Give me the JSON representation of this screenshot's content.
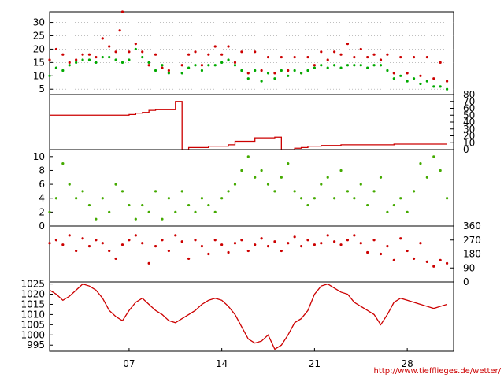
{
  "chart_data": [
    {
      "type": "line",
      "panel": "temperature",
      "y_axis_side": "left",
      "ylim": [
        3,
        34
      ],
      "yticks": [
        5,
        10,
        15,
        20,
        25,
        30
      ],
      "grid": "horizontal dotted",
      "series": [
        {
          "color": "#cc0000",
          "style": "points",
          "x": [
            1,
            1.5,
            2,
            2.5,
            3,
            3.5,
            4,
            4.5,
            5,
            5.5,
            6,
            6.3,
            6.5,
            7,
            7.5,
            8,
            8.5,
            9,
            9.5,
            10,
            11,
            11.5,
            12,
            12.5,
            13,
            13.5,
            14,
            14.5,
            15,
            15.5,
            16,
            16.5,
            17,
            17.5,
            18,
            18.5,
            19,
            19.5,
            20,
            20.5,
            21,
            21.5,
            22,
            22.5,
            23,
            23.5,
            24,
            24.5,
            25,
            25.5,
            26,
            26.5,
            27,
            27.5,
            28,
            28.5,
            29,
            29.5,
            30,
            30.5,
            31
          ],
          "y": [
            16,
            20,
            18,
            15,
            16,
            18,
            18,
            17,
            24,
            21,
            19,
            27,
            34,
            19,
            22,
            19,
            14,
            18,
            13,
            12,
            14,
            18,
            19,
            14,
            18,
            21,
            18,
            21,
            15,
            19,
            11,
            19,
            12,
            17,
            11,
            17,
            12,
            17,
            11,
            17,
            14,
            19,
            16,
            19,
            18,
            22,
            17,
            20,
            17,
            18,
            16,
            18,
            11,
            17,
            11,
            17,
            10,
            17,
            9,
            15,
            8
          ]
        },
        {
          "color": "#00aa00",
          "style": "points",
          "x": [
            1,
            1.5,
            2,
            2.5,
            3,
            3.5,
            4,
            4.5,
            5,
            5.5,
            6,
            6.5,
            7,
            7.5,
            8,
            8.5,
            9,
            9.5,
            10,
            11,
            11.5,
            12,
            12.5,
            13,
            13.5,
            14,
            14.5,
            15,
            15.5,
            16,
            16.5,
            17,
            17.5,
            18,
            18.5,
            19,
            19.5,
            20,
            20.5,
            21,
            21.5,
            22,
            22.5,
            23,
            23.5,
            24,
            24.5,
            25,
            25.5,
            26,
            26.5,
            27,
            27.5,
            28,
            28.5,
            29,
            29.5,
            30,
            30.5,
            31
          ],
          "y": [
            10,
            13,
            12,
            14,
            15,
            16,
            16,
            15,
            17,
            17,
            16,
            15,
            16,
            20,
            17,
            15,
            12,
            14,
            11,
            11,
            13,
            14,
            12,
            14,
            14,
            15,
            16,
            14,
            12,
            9,
            12,
            8,
            11,
            9,
            12,
            10,
            12,
            11,
            12,
            13,
            14,
            13,
            14,
            13,
            14,
            14,
            14,
            13,
            14,
            14,
            12,
            9,
            10,
            8,
            9,
            7,
            8,
            6,
            6,
            5
          ]
        }
      ]
    },
    {
      "type": "line",
      "panel": "precipitation",
      "y_axis_side": "right",
      "ylim": [
        0,
        80
      ],
      "yticks": [
        0,
        10,
        20,
        30,
        40,
        50,
        60,
        70,
        80
      ],
      "series": [
        {
          "color": "#cc0000",
          "style": "step",
          "x": [
            1,
            4.5,
            6,
            6.5,
            7,
            7.5,
            8,
            8.5,
            9,
            10,
            10.5,
            11,
            11.5,
            12,
            13,
            14,
            14.5,
            15,
            16,
            16.5,
            17,
            17.5,
            18,
            18.5,
            19,
            19.5,
            20,
            20.5,
            21,
            21.5,
            22,
            23,
            24,
            25,
            26,
            27,
            28,
            29,
            30,
            31
          ],
          "y": [
            50,
            50,
            50,
            50,
            51,
            53,
            54,
            57,
            58,
            58,
            70,
            0,
            3,
            3,
            5,
            5,
            7,
            12,
            12,
            17,
            17,
            17,
            18,
            0,
            0,
            2,
            3,
            5,
            5,
            6,
            6,
            7,
            7,
            7,
            7,
            8,
            8,
            8,
            8,
            8
          ]
        }
      ]
    },
    {
      "type": "scatter",
      "panel": "wind speed",
      "y_axis_side": "left",
      "ylim": [
        0,
        11
      ],
      "yticks": [
        0,
        2,
        4,
        6,
        8,
        10
      ],
      "series": [
        {
          "color": "#44aa00",
          "style": "points",
          "x": [
            1,
            1.5,
            2,
            2.5,
            3,
            3.5,
            4,
            4.5,
            5,
            5.5,
            6,
            6.5,
            7,
            7.5,
            8,
            8.5,
            9,
            9.5,
            10,
            10.5,
            11,
            11.5,
            12,
            12.5,
            13,
            13.5,
            14,
            14.5,
            15,
            15.5,
            16,
            16.5,
            17,
            17.5,
            18,
            18.5,
            19,
            19.5,
            20,
            20.5,
            21,
            21.5,
            22,
            22.5,
            23,
            23.5,
            24,
            24.5,
            25,
            25.5,
            26,
            26.5,
            27,
            27.5,
            28,
            28.5,
            29,
            29.5,
            30,
            30.5,
            31
          ],
          "y": [
            2,
            4,
            9,
            6,
            4,
            5,
            3,
            1,
            4,
            2,
            6,
            5,
            3,
            1,
            3,
            2,
            5,
            1,
            4,
            2,
            5,
            3,
            2,
            4,
            3,
            2,
            4,
            5,
            6,
            8,
            10,
            7,
            8,
            6,
            5,
            7,
            9,
            5,
            4,
            3,
            4,
            6,
            7,
            4,
            8,
            5,
            4,
            6,
            3,
            5,
            7,
            2,
            3,
            4,
            2,
            5,
            9,
            7,
            10,
            8,
            4
          ]
        }
      ]
    },
    {
      "type": "scatter",
      "panel": "wind direction",
      "y_axis_side": "right",
      "ylim": [
        0,
        360
      ],
      "yticks": [
        0,
        90,
        180,
        270,
        360
      ],
      "series": [
        {
          "color": "#cc0000",
          "style": "points",
          "x": [
            1,
            1.5,
            2,
            2.5,
            3,
            3.5,
            4,
            4.5,
            5,
            5.5,
            6,
            6.5,
            7,
            7.5,
            8,
            8.5,
            9,
            9.5,
            10,
            10.5,
            11,
            11.5,
            12,
            12.5,
            13,
            13.5,
            14,
            14.5,
            15,
            15.5,
            16,
            16.5,
            17,
            17.5,
            18,
            18.5,
            19,
            19.5,
            20,
            20.5,
            21,
            21.5,
            22,
            22.5,
            23,
            23.5,
            24,
            24.5,
            25,
            25.5,
            26,
            26.5,
            27,
            27.5,
            28,
            28.5,
            29,
            29.5,
            30,
            30.5,
            31
          ],
          "y": [
            250,
            270,
            240,
            300,
            200,
            280,
            230,
            270,
            250,
            200,
            150,
            240,
            270,
            300,
            250,
            120,
            230,
            270,
            200,
            300,
            260,
            150,
            270,
            230,
            180,
            270,
            240,
            190,
            250,
            270,
            200,
            240,
            280,
            230,
            260,
            200,
            250,
            290,
            230,
            270,
            240,
            250,
            300,
            260,
            240,
            270,
            300,
            250,
            190,
            270,
            180,
            230,
            140,
            280,
            200,
            150,
            250,
            130,
            100,
            140,
            120
          ]
        }
      ]
    },
    {
      "type": "line",
      "panel": "pressure",
      "y_axis_side": "left",
      "ylim": [
        992,
        1026
      ],
      "yticks": [
        995,
        1000,
        1005,
        1010,
        1015,
        1020,
        1025
      ],
      "x_ticks": [
        {
          "x": 7,
          "label": "07"
        },
        {
          "x": 14,
          "label": "14"
        },
        {
          "x": 21,
          "label": "21"
        },
        {
          "x": 28,
          "label": "28"
        }
      ],
      "xlim": [
        1,
        31.5
      ],
      "series": [
        {
          "color": "#cc0000",
          "style": "line",
          "x": [
            1,
            1.5,
            2,
            2.5,
            3,
            3.5,
            4,
            4.5,
            5,
            5.5,
            6,
            6.5,
            7,
            7.5,
            8,
            8.5,
            9,
            9.5,
            10,
            10.5,
            11,
            11.5,
            12,
            12.5,
            13,
            13.5,
            14,
            14.5,
            15,
            15.5,
            16,
            16.5,
            17,
            17.5,
            18,
            18.5,
            19,
            19.5,
            20,
            20.5,
            21,
            21.5,
            22,
            22.5,
            23,
            23.5,
            24,
            24.5,
            25,
            25.5,
            26,
            26.5,
            27,
            27.5,
            28,
            28.5,
            29,
            29.5,
            30,
            30.5,
            31
          ],
          "y": [
            1022,
            1020,
            1017,
            1019,
            1022,
            1025,
            1024,
            1022,
            1018,
            1012,
            1009,
            1007,
            1012,
            1016,
            1018,
            1015,
            1012,
            1010,
            1007,
            1006,
            1008,
            1010,
            1012,
            1015,
            1017,
            1018,
            1017,
            1014,
            1010,
            1004,
            998,
            996,
            997,
            1000,
            993,
            995,
            1000,
            1006,
            1008,
            1012,
            1020,
            1024,
            1025,
            1023,
            1021,
            1020,
            1016,
            1014,
            1012,
            1010,
            1005,
            1010,
            1016,
            1018,
            1017,
            1016,
            1015,
            1014,
            1013,
            1014,
            1015
          ]
        }
      ]
    }
  ],
  "credit": "http://www.tiefflieges.de/wetter/"
}
